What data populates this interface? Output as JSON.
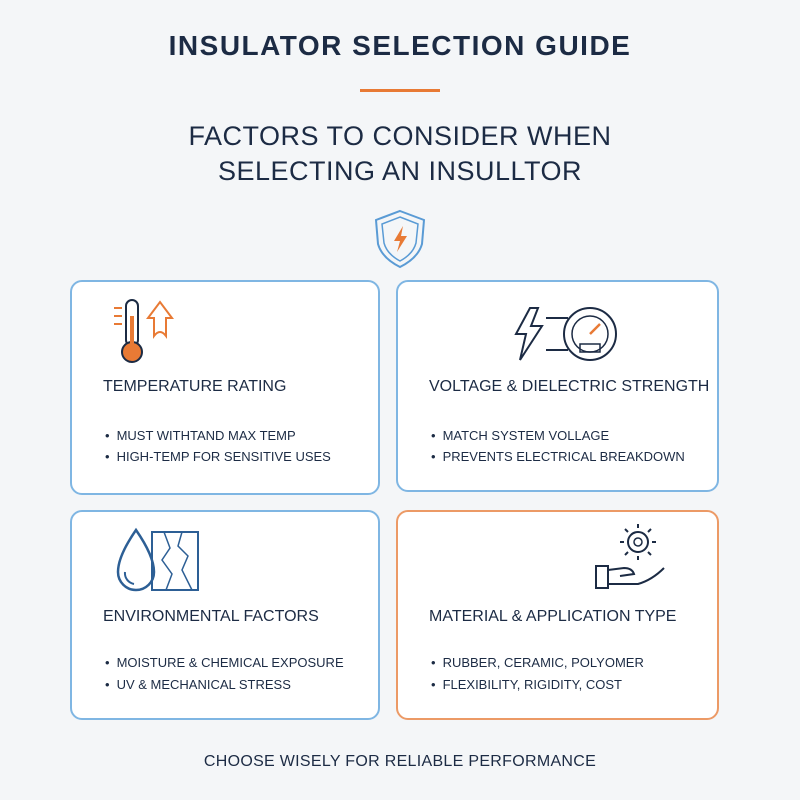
{
  "header": {
    "title": "INSULATOR SELECTION GUIDE",
    "subtitle": [
      "FACTORS TO CONSIDER WHEN",
      "SELECTING AN INSULLTOR"
    ]
  },
  "cards": [
    {
      "title": "TEMPERATURE RATING",
      "bullets": [
        "MUST WITHTAND MAX TEMP",
        "HIGH-TEMP FOR SENSITIVE USES"
      ]
    },
    {
      "title": "VOLTAGE & DIELECTRIC STRENGTH",
      "bullets": [
        "MATCH SYSTEM VOLLAGE",
        "PREVENTS ELECTRICAL BREAKDOWN"
      ]
    },
    {
      "title": "ENVIRONMENTAL FACTORS",
      "bullets": [
        "MOISTURE & CHEMICAL EXPOSURE",
        "UV & MECHANICAL STRESS"
      ]
    },
    {
      "title": "MATERIAL & APPLICATION TYPE",
      "bullets": [
        "RUBBER, CERAMIC, POLYOMER",
        "FLEXIBILITY, RIGIDITY, COST"
      ]
    }
  ],
  "footer": {
    "text": "CHOOSE WISELY FOR RELIABLE PERFORMANCE"
  }
}
